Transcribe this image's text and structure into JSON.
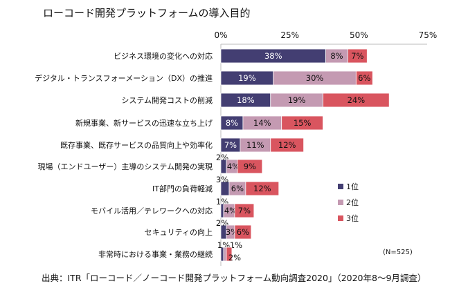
{
  "chart_data": {
    "type": "bar",
    "stacked": true,
    "orientation": "horizontal",
    "title": "ローコード開発プラットフォームの導入目的",
    "categories": [
      "ビジネス環境の変化への対応",
      "デジタル・トランスフォーメーション（DX）の推進",
      "システム開発コストの削減",
      "新規事業、新サービスの迅速な立ち上げ",
      "既存事業、既存サービスの品質向上や効率化",
      "現場（エンドユーザー）主導のシステム開発の実現",
      "IT部門の負荷軽減",
      "モバイル活用／テレワークへの対応",
      "セキュリティの向上",
      "非常時における事業・業務の継続"
    ],
    "series": [
      {
        "name": "1位",
        "color": "#433e72",
        "values": [
          38,
          19,
          18,
          8,
          7,
          2,
          3,
          1,
          2,
          1
        ]
      },
      {
        "name": "2位",
        "color": "#c49ab2",
        "values": [
          8,
          30,
          19,
          14,
          11,
          4,
          6,
          4,
          3,
          1
        ]
      },
      {
        "name": "3位",
        "color": "#d9555f",
        "values": [
          7,
          6,
          24,
          15,
          12,
          9,
          12,
          7,
          6,
          2
        ]
      }
    ],
    "xlim": [
      0,
      75
    ],
    "xticks": [
      "0%",
      "25%",
      "50%",
      "75%"
    ],
    "legend": "right",
    "note": "(N=525)"
  },
  "source": "出典：ITR「ローコード／ノーコード開発プラットフォーム動向調査2020」（2020年8〜9月調査）"
}
